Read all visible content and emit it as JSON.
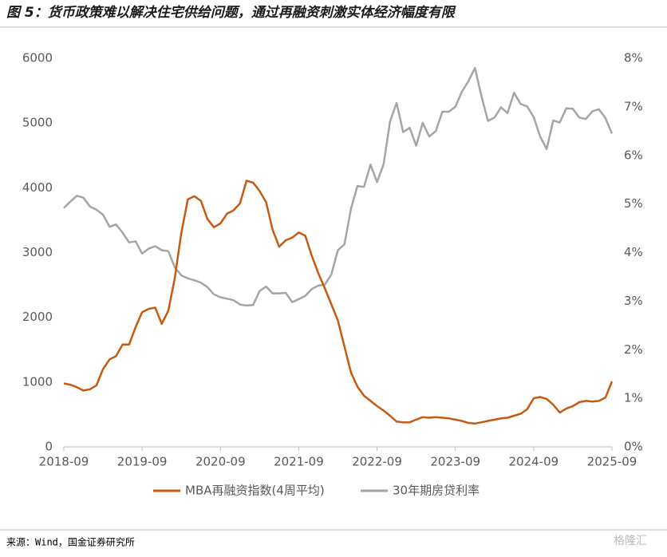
{
  "chart_data": {
    "type": "line",
    "title": "图 5：货币政策难以解决住宅供给问题，通过再融资刺激实体经济幅度有限",
    "source": "来源：Wind，国金证券研究所",
    "watermark": "格隆汇",
    "x": [
      "2018-09",
      "2018-10",
      "2018-11",
      "2018-12",
      "2019-01",
      "2019-02",
      "2019-03",
      "2019-04",
      "2019-05",
      "2019-06",
      "2019-07",
      "2019-08",
      "2019-09",
      "2019-10",
      "2019-11",
      "2019-12",
      "2020-01",
      "2020-02",
      "2020-03",
      "2020-04",
      "2020-05",
      "2020-06",
      "2020-07",
      "2020-08",
      "2020-09",
      "2020-10",
      "2020-11",
      "2020-12",
      "2021-01",
      "2021-02",
      "2021-03",
      "2021-04",
      "2021-05",
      "2021-06",
      "2021-07",
      "2021-08",
      "2021-09",
      "2021-10",
      "2021-11",
      "2021-12",
      "2022-01",
      "2022-02",
      "2022-03",
      "2022-04",
      "2022-05",
      "2022-06",
      "2022-07",
      "2022-08",
      "2022-09",
      "2022-10",
      "2022-11",
      "2022-12",
      "2023-01",
      "2023-02",
      "2023-03",
      "2023-04",
      "2023-05",
      "2023-06",
      "2023-07",
      "2023-08",
      "2023-09",
      "2023-10",
      "2023-11",
      "2023-12",
      "2024-01",
      "2024-02",
      "2024-03",
      "2024-04",
      "2024-05",
      "2024-06",
      "2024-07",
      "2024-08",
      "2024-09",
      "2024-10",
      "2024-11",
      "2024-12",
      "2025-01",
      "2025-02",
      "2025-03",
      "2025-04",
      "2025-05",
      "2025-06",
      "2025-07",
      "2025-08",
      "2025-09"
    ],
    "xticks": [
      "2018-09",
      "2019-09",
      "2020-09",
      "2021-09",
      "2022-09",
      "2023-09",
      "2024-09",
      "2025-09"
    ],
    "ylim": [
      0,
      6000
    ],
    "yticks": [
      0,
      1000,
      2000,
      3000,
      4000,
      5000,
      6000
    ],
    "y2lim": [
      0,
      8
    ],
    "y2ticks": [
      {
        "value": 0,
        "label": "0%"
      },
      {
        "value": 1,
        "label": "1%"
      },
      {
        "value": 2,
        "label": "2%"
      },
      {
        "value": 3,
        "label": "3%"
      },
      {
        "value": 4,
        "label": "4%"
      },
      {
        "value": 5,
        "label": "5%"
      },
      {
        "value": 6,
        "label": "6%"
      },
      {
        "value": 7,
        "label": "7%"
      },
      {
        "value": 8,
        "label": "8%"
      }
    ],
    "legend": "bottom",
    "series": [
      {
        "name": "MBA再融资指数(4周平均)",
        "color": "#c55a11",
        "values": [
          980,
          960,
          920,
          870,
          890,
          950,
          1200,
          1350,
          1400,
          1580,
          1580,
          1850,
          2080,
          2130,
          2150,
          1900,
          2100,
          2600,
          3300,
          3820,
          3870,
          3800,
          3520,
          3390,
          3450,
          3600,
          3650,
          3760,
          4110,
          4080,
          3950,
          3780,
          3350,
          3090,
          3190,
          3230,
          3310,
          3260,
          2950,
          2680,
          2450,
          2200,
          1950,
          1550,
          1150,
          930,
          790,
          710,
          630,
          560,
          480,
          390,
          380,
          380,
          420,
          460,
          450,
          460,
          450,
          440,
          420,
          400,
          370,
          360,
          380,
          400,
          420,
          440,
          450,
          480,
          510,
          580,
          750,
          770,
          740,
          650,
          530,
          590,
          630,
          690,
          710,
          700,
          710,
          760,
          1010
        ]
      },
      {
        "name": "30年期房贷利率",
        "color": "#a5a5a5",
        "axis": "y2",
        "values": [
          4.92,
          5.05,
          5.17,
          5.13,
          4.95,
          4.88,
          4.78,
          4.53,
          4.58,
          4.41,
          4.21,
          4.23,
          3.98,
          4.08,
          4.13,
          4.05,
          4.03,
          3.7,
          3.53,
          3.47,
          3.43,
          3.38,
          3.29,
          3.14,
          3.08,
          3.05,
          3.02,
          2.93,
          2.91,
          2.92,
          3.21,
          3.3,
          3.16,
          3.16,
          3.17,
          2.98,
          3.04,
          3.11,
          3.25,
          3.32,
          3.34,
          3.55,
          4.05,
          4.17,
          4.9,
          5.37,
          5.35,
          5.81,
          5.45,
          5.82,
          6.7,
          7.08,
          6.48,
          6.57,
          6.2,
          6.67,
          6.39,
          6.5,
          6.9,
          6.9,
          7.0,
          7.31,
          7.53,
          7.8,
          7.22,
          6.71,
          6.78,
          6.99,
          6.87,
          7.29,
          7.06,
          7.01,
          6.79,
          6.39,
          6.13,
          6.72,
          6.68,
          6.97,
          6.96,
          6.78,
          6.75,
          6.91,
          6.95,
          6.77,
          6.45
        ]
      }
    ]
  }
}
